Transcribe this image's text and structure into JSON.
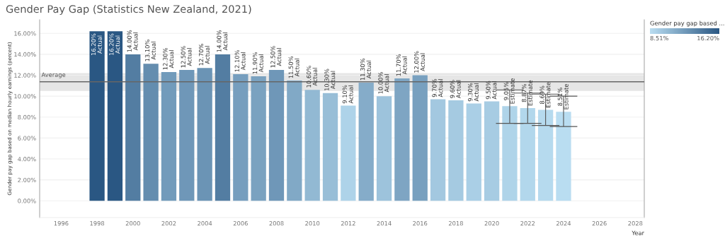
{
  "chart_data": {
    "type": "bar",
    "title": "Gender Pay Gap (Statistics New Zealand, 2021)",
    "xlabel": "Year",
    "ylabel": "Gender pay gap based on median hourly earnings (percent)",
    "x": [
      1998,
      1999,
      2000,
      2001,
      2002,
      2003,
      2004,
      2005,
      2006,
      2007,
      2008,
      2009,
      2010,
      2011,
      2012,
      2013,
      2014,
      2015,
      2016,
      2017,
      2018,
      2019,
      2020,
      2021,
      2022,
      2023,
      2024
    ],
    "values": [
      16.2,
      16.2,
      14.0,
      13.1,
      12.3,
      12.5,
      12.7,
      14.0,
      12.1,
      11.9,
      12.5,
      11.5,
      10.6,
      10.3,
      9.1,
      11.3,
      10.0,
      11.7,
      12.0,
      9.7,
      9.6,
      9.3,
      9.5,
      9.05,
      8.87,
      8.69,
      8.51
    ],
    "colors": [
      "#2a5783",
      "#2a5783",
      "#537da2",
      "#648daf",
      "#729bbb",
      "#6f97b8",
      "#6b94b5",
      "#537da2",
      "#769ebe",
      "#7aa2c0",
      "#6f97b8",
      "#81a9c6",
      "#92b9d3",
      "#98bed7",
      "#aed3e9",
      "#85acc9",
      "#9dc3dc",
      "#7ea5c3",
      "#78a0bf",
      "#a3c8e0",
      "#a5cae1",
      "#aacfe6",
      "#a7cce3",
      "#afd4e9",
      "#b2d7ec",
      "#b6daee",
      "#b9ddf1"
    ],
    "value_labels": [
      "16.20%\nActual",
      "16.20%\nActual",
      "14.00%\nActual",
      "13.10%\nActual",
      "12.30%\nActual",
      "12.50%\nActual",
      "12.70%\nActual",
      "14.00%\nActual",
      "12.10%\nActual",
      "11.90%\nActual",
      "12.50%\nActual",
      "11.50%\nActual",
      "10.60%\nActual",
      "10.30%\nActual",
      "9.10%\nActual",
      "11.30%\nActual",
      "10.00%\nActual",
      "11.70%\nActual",
      "12.00%\nActual",
      "9.70%\nActual",
      "9.60%\nActual",
      "9.30%\nActual",
      "9.50%\nActual",
      "9.05%\nEstimate",
      "8.87%\nEstimate",
      "8.69%\nEstimate",
      "8.51%\nEstimate"
    ],
    "errors": [
      null,
      null,
      null,
      null,
      null,
      null,
      null,
      null,
      null,
      null,
      null,
      null,
      null,
      null,
      null,
      null,
      null,
      null,
      null,
      null,
      null,
      null,
      null,
      [
        7.4,
        10.6
      ],
      [
        7.4,
        10.3
      ],
      [
        7.2,
        10.2
      ],
      [
        7.1,
        10.0
      ]
    ],
    "xlim": [
      1994.8,
      2028.5
    ],
    "ylim": [
      -1.6,
      17.3
    ],
    "xticks": [
      1996,
      1998,
      2000,
      2002,
      2004,
      2006,
      2008,
      2010,
      2012,
      2014,
      2016,
      2018,
      2020,
      2022,
      2024,
      2026,
      2028
    ],
    "yticks": [
      {
        "value": 0,
        "label": "0.00%"
      },
      {
        "value": 2,
        "label": "2.00%"
      },
      {
        "value": 4,
        "label": "4.00%"
      },
      {
        "value": 6,
        "label": "6.00%"
      },
      {
        "value": 8,
        "label": "8.00%"
      },
      {
        "value": 10,
        "label": "10.00%"
      },
      {
        "value": 12,
        "label": "12.00%"
      },
      {
        "value": 14,
        "label": "14.00%"
      },
      {
        "value": 16,
        "label": "16.00%"
      }
    ],
    "grid": "y",
    "ref_lines": [
      {
        "axis": "y",
        "value": 11.38,
        "label": "Average",
        "color": "#666666"
      }
    ],
    "bands": [
      {
        "axis": "y",
        "from": 10.5,
        "to": 12.2,
        "color": "#e6e6e6"
      }
    ],
    "clabel": "Gender pay gap based ...",
    "clim": [
      8.51,
      16.2
    ],
    "cticks": [
      {
        "value": 8.51,
        "label": "8.51%"
      },
      {
        "value": 16.2,
        "label": "16.20%"
      }
    ]
  }
}
